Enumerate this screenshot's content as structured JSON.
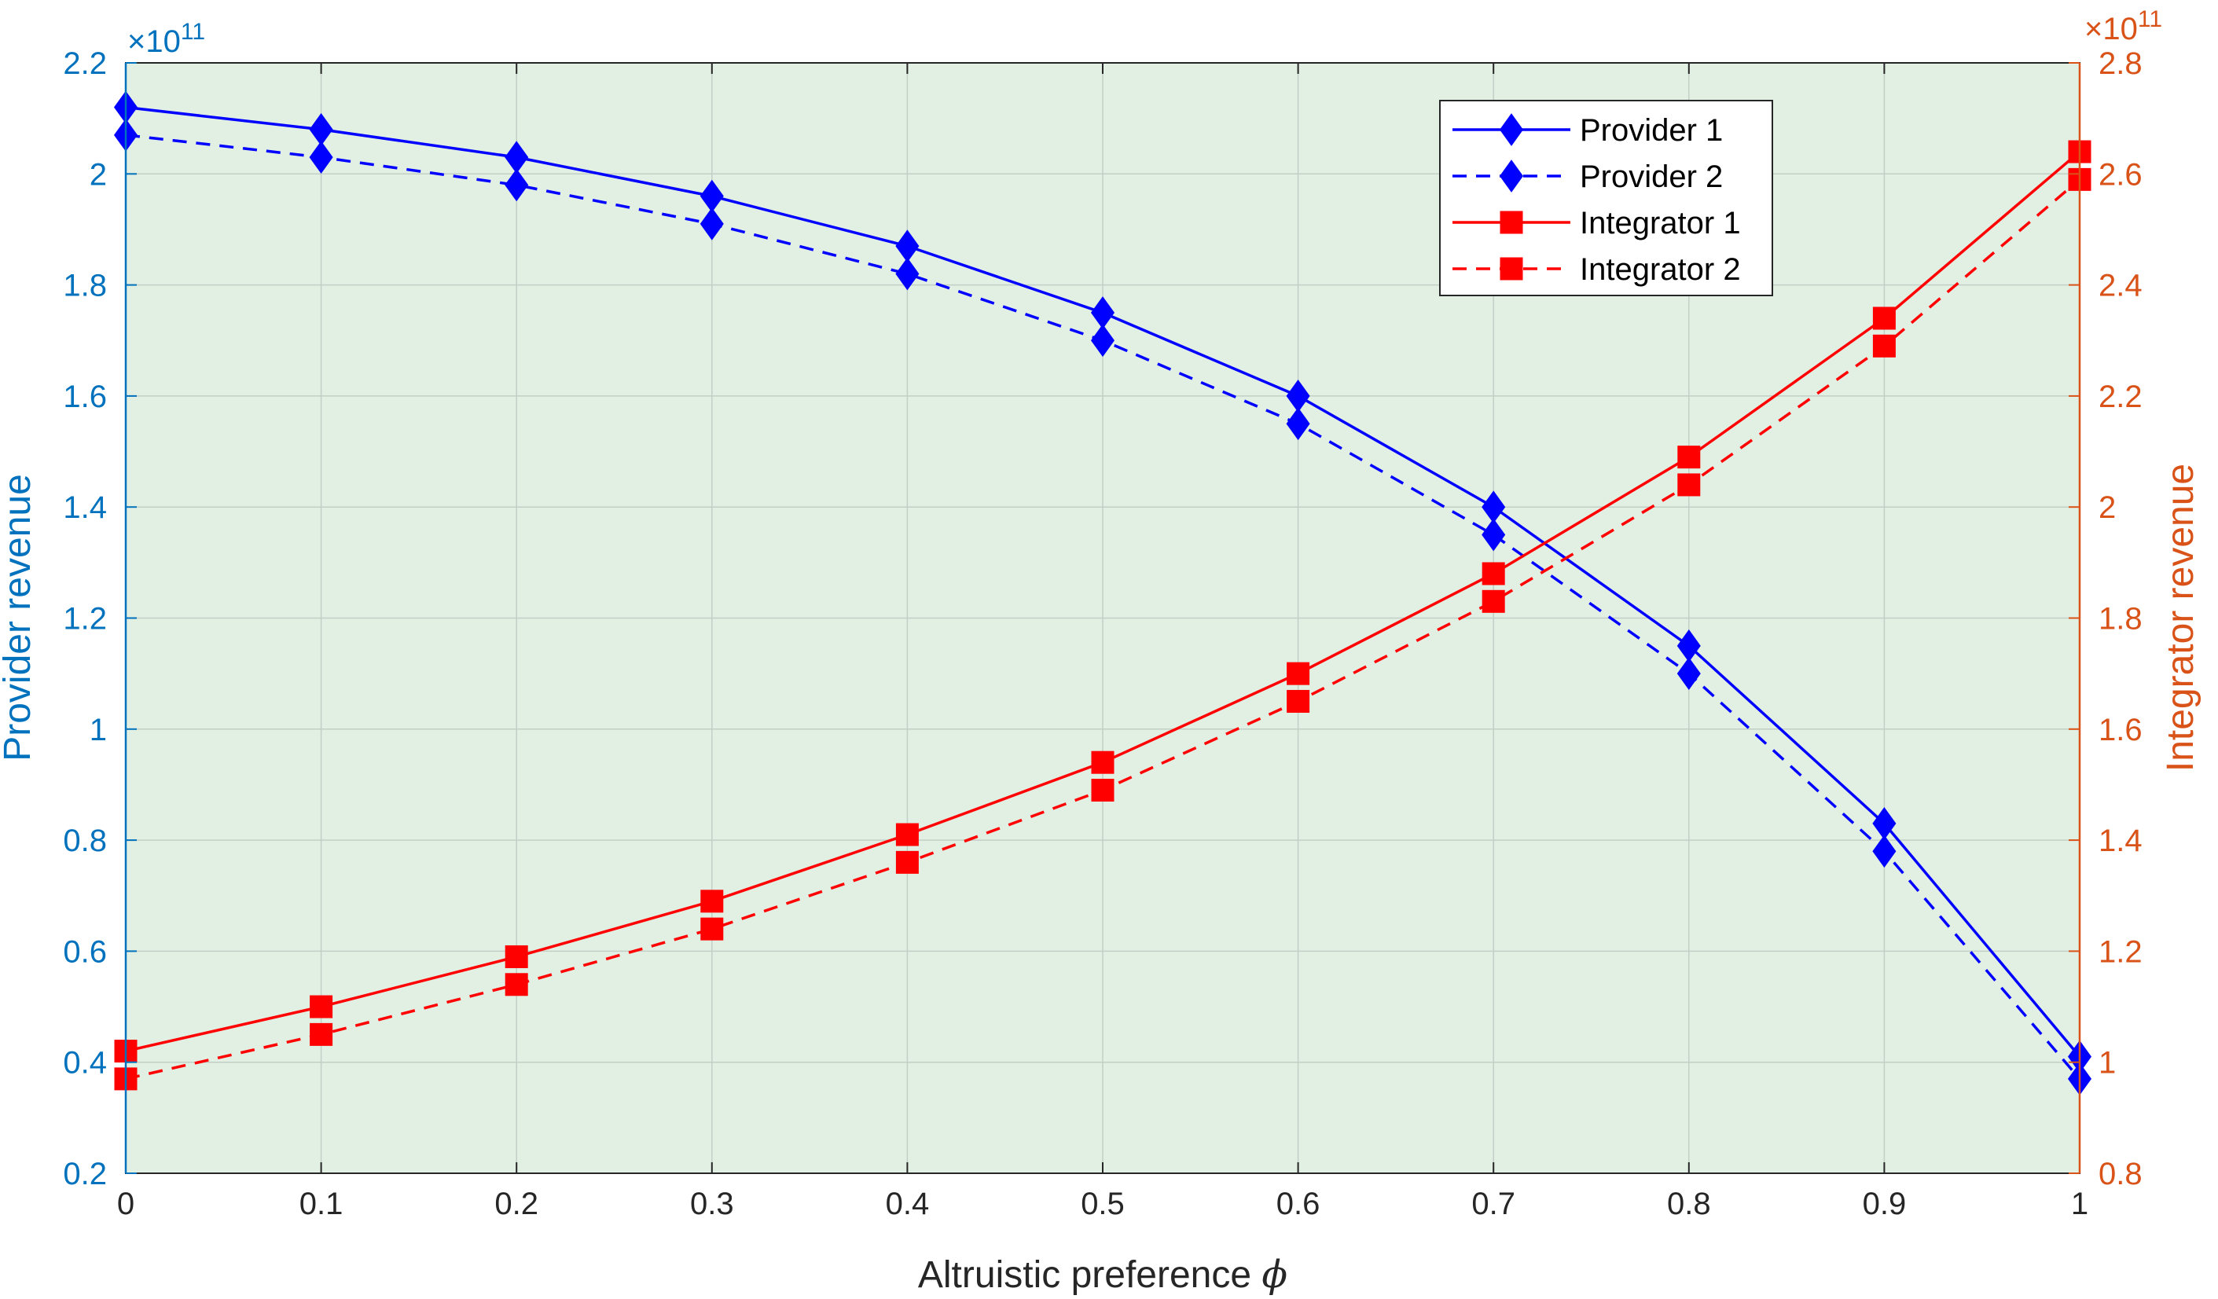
{
  "chart_data": {
    "type": "line",
    "xlabel_text": "Altruistic preference",
    "xlabel_symbol": "ϕ",
    "ylabel_left": "Provider revenue",
    "ylabel_right": "Integrator revenue",
    "left_exponent_times": "×10",
    "left_exponent_power": "11",
    "right_exponent_times": "×10",
    "right_exponent_power": "11",
    "x": [
      0,
      0.1,
      0.2,
      0.3,
      0.4,
      0.5,
      0.6,
      0.7,
      0.8,
      0.9,
      1
    ],
    "xlim": [
      0,
      1
    ],
    "ylim_left": [
      0.2,
      2.2
    ],
    "ylim_right": [
      0.8,
      2.8
    ],
    "xticks": [
      "0",
      "0.1",
      "0.2",
      "0.3",
      "0.4",
      "0.5",
      "0.6",
      "0.7",
      "0.8",
      "0.9",
      "1"
    ],
    "yticks_left": [
      "0.2",
      "0.4",
      "0.6",
      "0.8",
      "1",
      "1.2",
      "1.4",
      "1.6",
      "1.8",
      "2",
      "2.2"
    ],
    "yticks_right": [
      "0.8",
      "1",
      "1.2",
      "1.4",
      "1.6",
      "1.8",
      "2",
      "2.2",
      "2.4",
      "2.6",
      "2.8"
    ],
    "grid": true,
    "legend_position": "top-right",
    "plot_background": "#e2efe3",
    "series": [
      {
        "name": "Provider 1",
        "axis": "left",
        "color": "#0000ff",
        "dashed": false,
        "marker": "diamond",
        "values": [
          2.12,
          2.08,
          2.03,
          1.96,
          1.87,
          1.75,
          1.6,
          1.4,
          1.15,
          0.83,
          0.41
        ]
      },
      {
        "name": "Provider 2",
        "axis": "left",
        "color": "#0000ff",
        "dashed": true,
        "marker": "diamond",
        "values": [
          2.07,
          2.03,
          1.98,
          1.91,
          1.82,
          1.7,
          1.55,
          1.35,
          1.1,
          0.78,
          0.37
        ]
      },
      {
        "name": "Integrator 1",
        "axis": "right",
        "color": "#ff0000",
        "dashed": false,
        "marker": "square",
        "values": [
          1.02,
          1.1,
          1.19,
          1.29,
          1.41,
          1.54,
          1.7,
          1.88,
          2.09,
          2.34,
          2.64
        ]
      },
      {
        "name": "Integrator 2",
        "axis": "right",
        "color": "#ff0000",
        "dashed": true,
        "marker": "square",
        "values": [
          0.97,
          1.05,
          1.14,
          1.24,
          1.36,
          1.49,
          1.65,
          1.83,
          2.04,
          2.29,
          2.59
        ]
      }
    ]
  }
}
